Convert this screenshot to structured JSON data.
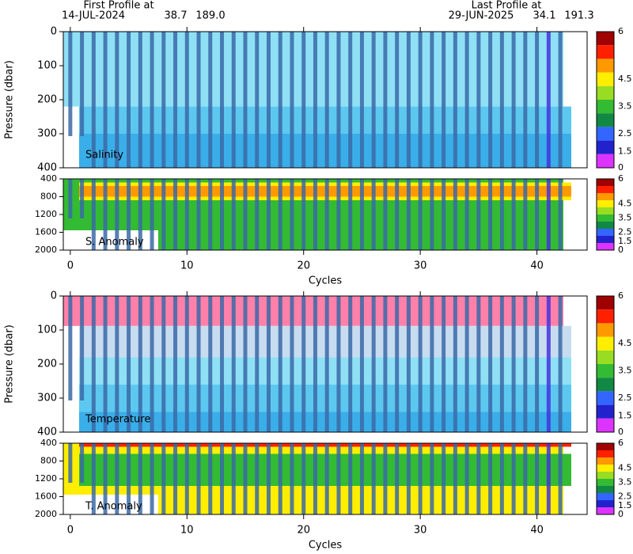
{
  "header": {
    "first_label": "First Profile at",
    "first_date": "14-JUL-2024",
    "first_lat": "38.7",
    "first_lon": "189.0",
    "last_label": "Last Profile at",
    "last_date": "29-JUN-2025",
    "last_lat": "34.1",
    "last_lon": "191.3"
  },
  "xlim": [
    -0.6,
    44.3
  ],
  "xticks": [
    0,
    10,
    20,
    30,
    40
  ],
  "xlabel": "Cycles",
  "ylabel": "Pressure (dbar)",
  "colorbar_ticks": [
    6,
    4.5,
    3.5,
    2.5,
    1.5,
    0
  ],
  "panels": [
    {
      "label": "Salinity",
      "ylim": [
        0,
        400
      ],
      "yticks": [
        0,
        100,
        200,
        300,
        400
      ]
    },
    {
      "label": "S. Anomaly",
      "ylim": [
        400,
        2000
      ],
      "yticks": [
        400,
        800,
        1200,
        1600,
        2000
      ]
    },
    {
      "label": "Temperature",
      "ylim": [
        0,
        400
      ],
      "yticks": [
        0,
        100,
        200,
        300,
        400
      ]
    },
    {
      "label": "T. Anomaly",
      "ylim": [
        400,
        2000
      ],
      "yticks": [
        400,
        800,
        1200,
        1600,
        2000
      ]
    }
  ]
}
